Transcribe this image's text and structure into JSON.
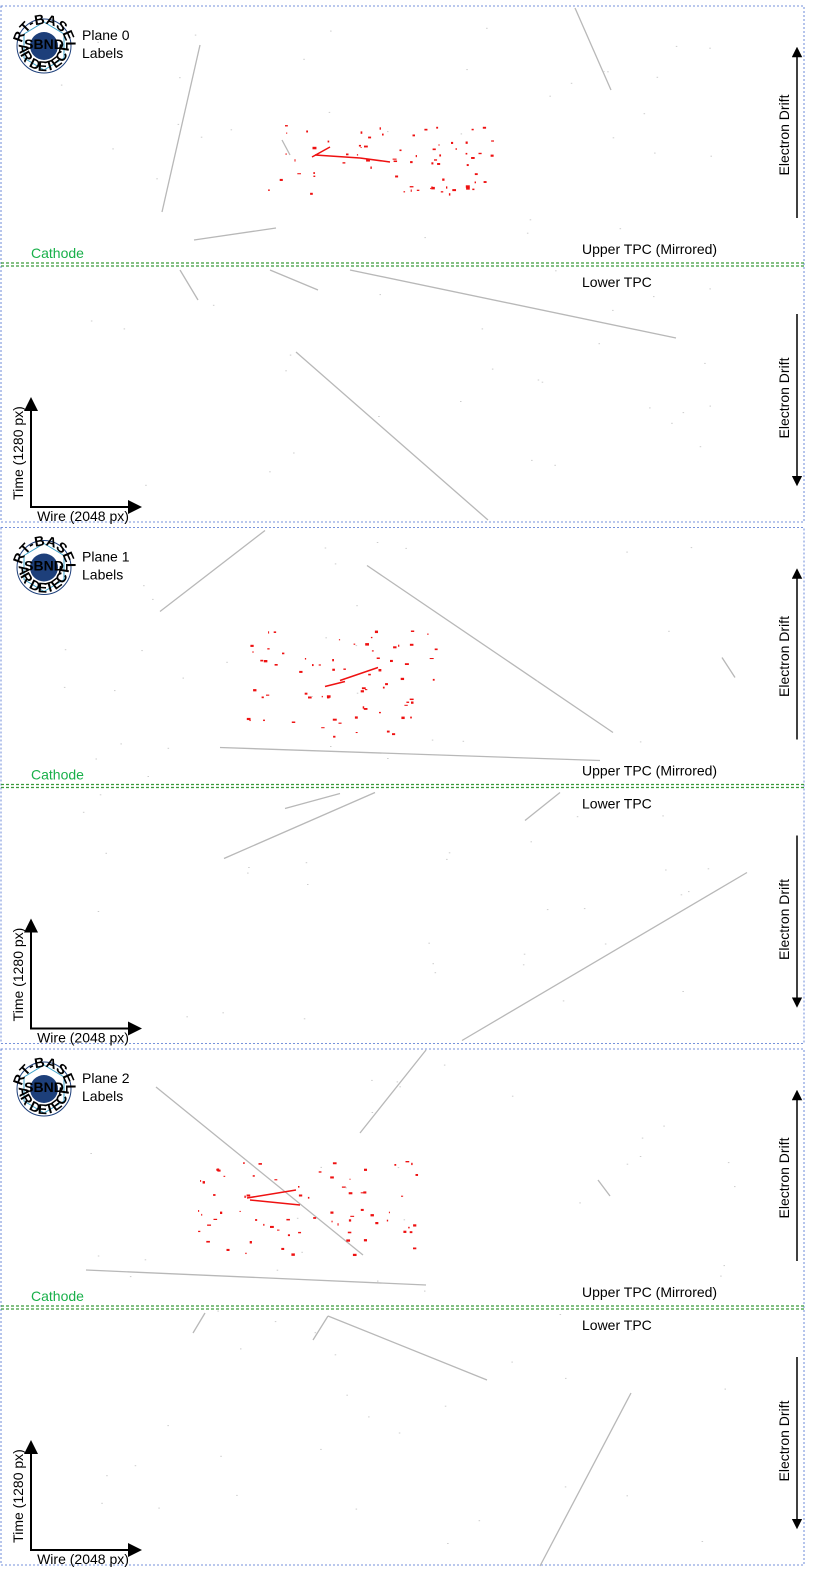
{
  "logo": {
    "top": "SHORT-BASELINE",
    "center": "SBND",
    "bottom": "NEAR DETECTOR"
  },
  "panels": [
    {
      "plane": "Plane 0",
      "subtitle": "Labels",
      "cathode": "Cathode",
      "upper_tpc": "Upper TPC (Mirrored)",
      "lower_tpc": "Lower TPC",
      "drift_upper": "Electron Drift",
      "drift_lower": "Electron Drift",
      "time_axis": "Time (1280 px)",
      "wire_axis": "Wire (2048 px)"
    },
    {
      "plane": "Plane 1",
      "subtitle": "Labels",
      "cathode": "Cathode",
      "upper_tpc": "Upper TPC (Mirrored)",
      "lower_tpc": "Lower TPC",
      "drift_upper": "Electron Drift",
      "drift_lower": "Electron Drift",
      "time_axis": "Time (1280 px)",
      "wire_axis": "Wire (2048 px)"
    },
    {
      "plane": "Plane 2",
      "subtitle": "Labels",
      "cathode": "Cathode",
      "upper_tpc": "Upper TPC (Mirrored)",
      "lower_tpc": "Lower TPC",
      "drift_upper": "Electron Drift",
      "drift_lower": "Electron Drift",
      "time_axis": "Time (1280 px)",
      "wire_axis": "Wire (2048 px)"
    }
  ]
}
